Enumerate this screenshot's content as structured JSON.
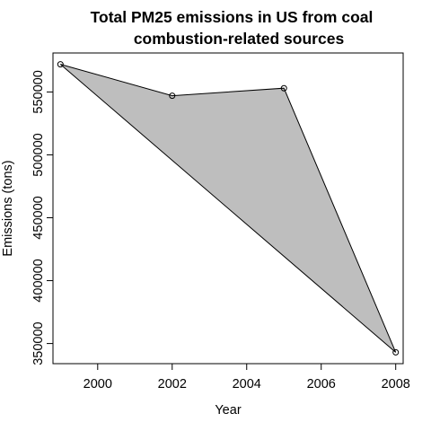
{
  "chart_data": {
    "type": "area",
    "title_lines": [
      "Total PM25 emissions in US from coal",
      "combustion-related sources"
    ],
    "xlabel": "Year",
    "ylabel": "Emissions (tons)",
    "x": [
      1999,
      2002,
      2005,
      2008
    ],
    "y": [
      572000,
      547000,
      553000,
      343000
    ],
    "xlim": [
      1998.8,
      2008.2
    ],
    "ylim": [
      334000,
      581000
    ],
    "xticks": [
      2000,
      2002,
      2004,
      2006,
      2008
    ],
    "yticks": [
      350000,
      400000,
      450000,
      500000,
      550000
    ],
    "fill_color": "#bebebe",
    "line_color": "#000000",
    "grid": false,
    "legend": "none"
  }
}
